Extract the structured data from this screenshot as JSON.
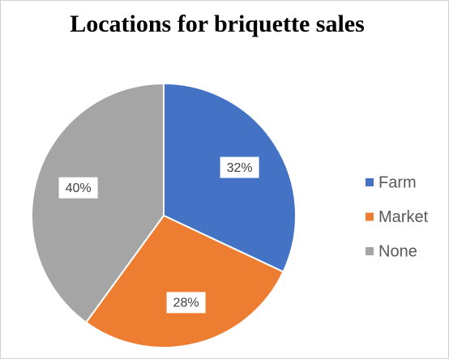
{
  "chart_data": {
    "type": "pie",
    "title": "Locations for briquette sales",
    "categories": [
      "Farm",
      "Market",
      "None"
    ],
    "values": [
      32,
      28,
      40
    ],
    "value_labels": [
      "32%",
      "28%",
      "40%"
    ],
    "colors": [
      "#4472c4",
      "#ed7d31",
      "#a5a5a5"
    ],
    "legend": "right"
  }
}
